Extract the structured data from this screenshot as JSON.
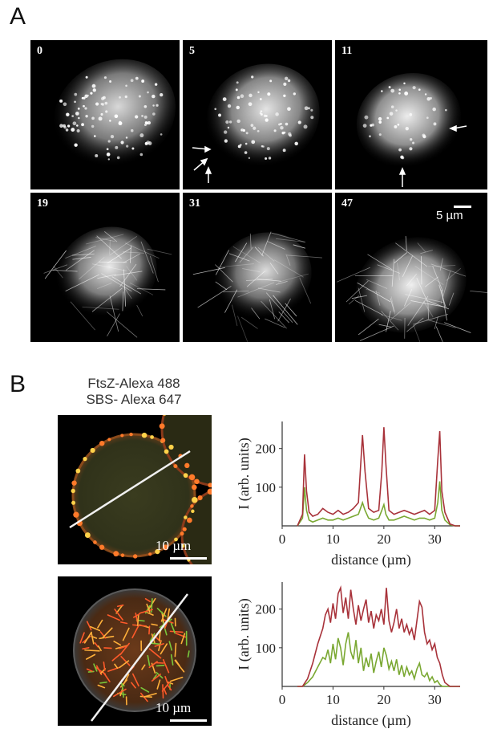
{
  "panel_a": {
    "letter": "A",
    "frames": [
      {
        "label": "0"
      },
      {
        "label": "5"
      },
      {
        "label": "11"
      },
      {
        "label": "19"
      },
      {
        "label": "31"
      },
      {
        "label": "47"
      }
    ],
    "scale_bar": "5 µm"
  },
  "panel_b": {
    "letter": "B",
    "caption_line1": "FtsZ-Alexa 488",
    "caption_line2": "SBS- Alexa 647",
    "micrograph_scale": "10 µm",
    "colors": {
      "red": "#a8323a",
      "green": "#7aa832"
    }
  },
  "chart_data": [
    {
      "type": "line",
      "ylabel": "I (arb. units)",
      "xlabel": "distance (µm)",
      "xlim": [
        0,
        35
      ],
      "ylim": [
        0,
        270
      ],
      "xticks": [
        "0",
        "10",
        "20",
        "30"
      ],
      "yticks": [
        "100",
        "200"
      ],
      "series": [
        {
          "color": "#a8323a",
          "x": [
            3,
            4,
            4.4,
            4.8,
            5.3,
            6,
            7,
            8,
            9,
            10,
            11,
            12,
            13,
            14,
            15,
            15.4,
            15.8,
            16.3,
            17,
            18,
            19,
            19.6,
            20,
            20.4,
            21,
            22,
            23,
            24,
            25,
            26,
            27,
            28,
            29,
            30,
            30.6,
            31,
            31.4,
            32,
            33,
            34,
            35
          ],
          "y": [
            0,
            30,
            185,
            90,
            35,
            25,
            30,
            45,
            35,
            30,
            40,
            30,
            35,
            45,
            60,
            150,
            235,
            140,
            45,
            35,
            40,
            140,
            255,
            160,
            40,
            30,
            35,
            40,
            35,
            30,
            35,
            40,
            30,
            40,
            170,
            245,
            90,
            35,
            5,
            0,
            0
          ]
        },
        {
          "color": "#7aa832",
          "x": [
            3,
            4,
            4.4,
            4.8,
            5.3,
            6,
            7,
            8,
            9,
            10,
            11,
            12,
            13,
            14,
            15,
            15.4,
            15.8,
            16.3,
            17,
            18,
            19,
            19.6,
            20,
            20.4,
            21,
            22,
            23,
            24,
            25,
            26,
            27,
            28,
            29,
            30,
            30.6,
            31,
            31.4,
            32,
            33,
            34,
            35
          ],
          "y": [
            0,
            20,
            100,
            40,
            15,
            10,
            15,
            20,
            15,
            15,
            20,
            15,
            20,
            25,
            30,
            45,
            60,
            40,
            20,
            15,
            20,
            40,
            55,
            30,
            15,
            15,
            20,
            25,
            20,
            15,
            20,
            20,
            15,
            20,
            60,
            115,
            40,
            15,
            3,
            0,
            0
          ]
        }
      ]
    },
    {
      "type": "line",
      "ylabel": "I (arb. units)",
      "xlabel": "distance (µm)",
      "xlim": [
        0,
        35
      ],
      "ylim": [
        0,
        270
      ],
      "xticks": [
        "0",
        "10",
        "20",
        "30"
      ],
      "yticks": [
        "100",
        "200"
      ],
      "series": [
        {
          "color": "#a8323a",
          "x": [
            3,
            4,
            5,
            6,
            7,
            8,
            8.5,
            9,
            9.5,
            10,
            10.5,
            11,
            11.5,
            12,
            12.5,
            13,
            13.5,
            14,
            14.5,
            15,
            15.5,
            16,
            16.5,
            17,
            17.5,
            18,
            18.5,
            19,
            19.5,
            20,
            20.5,
            21,
            21.5,
            22,
            22.5,
            23,
            23.5,
            24,
            24.5,
            25,
            25.5,
            26,
            26.5,
            27,
            27.5,
            28,
            28.5,
            29,
            29.5,
            30,
            30.5,
            31,
            31.5,
            32,
            33,
            34,
            35
          ],
          "y": [
            0,
            0,
            20,
            60,
            110,
            150,
            185,
            200,
            165,
            215,
            175,
            240,
            255,
            190,
            230,
            175,
            250,
            200,
            160,
            210,
            170,
            200,
            225,
            165,
            195,
            150,
            185,
            170,
            200,
            160,
            255,
            170,
            140,
            165,
            200,
            150,
            175,
            140,
            160,
            135,
            150,
            120,
            170,
            220,
            205,
            140,
            110,
            120,
            95,
            110,
            75,
            60,
            30,
            10,
            0,
            0,
            0
          ]
        },
        {
          "color": "#7aa832",
          "x": [
            3,
            4,
            5,
            6,
            7,
            8,
            8.5,
            9,
            9.5,
            10,
            10.5,
            11,
            11.5,
            12,
            12.5,
            13,
            13.5,
            14,
            14.5,
            15,
            15.5,
            16,
            16.5,
            17,
            17.5,
            18,
            18.5,
            19,
            19.5,
            20,
            20.5,
            21,
            21.5,
            22,
            22.5,
            23,
            23.5,
            24,
            24.5,
            25,
            25.5,
            26,
            26.5,
            27,
            27.5,
            28,
            28.5,
            29,
            29.5,
            30,
            30.5,
            31,
            31.5,
            32,
            33,
            34,
            35
          ],
          "y": [
            0,
            0,
            10,
            25,
            50,
            75,
            70,
            95,
            60,
            110,
            70,
            125,
            100,
            55,
            110,
            140,
            90,
            70,
            120,
            60,
            100,
            40,
            75,
            50,
            85,
            35,
            65,
            90,
            50,
            100,
            80,
            45,
            65,
            40,
            70,
            30,
            55,
            25,
            50,
            30,
            40,
            20,
            45,
            60,
            30,
            25,
            35,
            15,
            25,
            10,
            15,
            5,
            0,
            0,
            0,
            0,
            0
          ]
        }
      ]
    }
  ]
}
